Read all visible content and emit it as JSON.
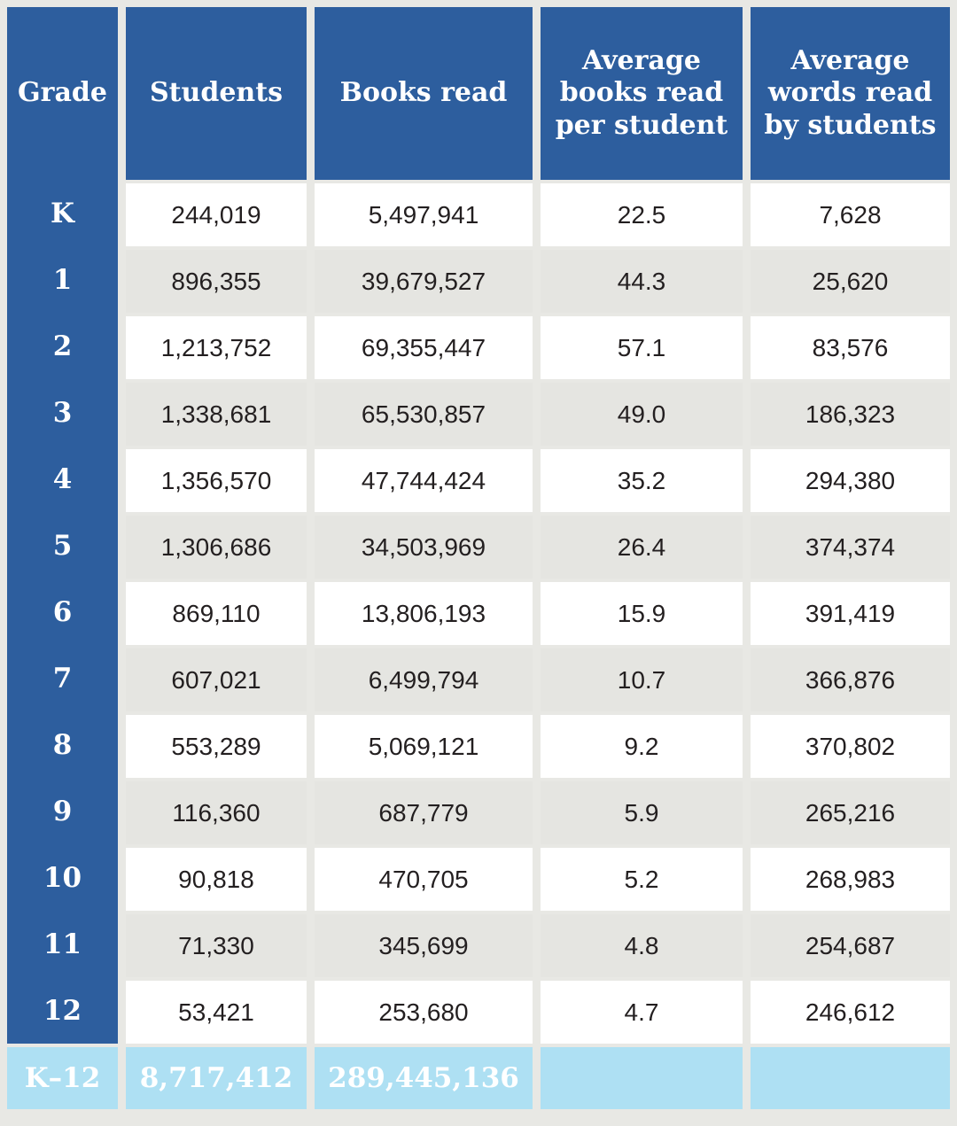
{
  "colors": {
    "header_blue": "#2d5e9e",
    "total_light_blue": "#aee0f3",
    "row_alt_gray": "#e5e5e1",
    "row_white": "#ffffff",
    "page_background": "#e8e8e4",
    "data_text": "#231f20",
    "header_text": "#ffffff"
  },
  "chart_data": {
    "type": "table",
    "columns": [
      "Grade",
      "Students",
      "Books read",
      "Average books read per student",
      "Average words read by students"
    ],
    "rows": [
      [
        "K",
        "244,019",
        "5,497,941",
        "22.5",
        "7,628"
      ],
      [
        "1",
        "896,355",
        "39,679,527",
        "44.3",
        "25,620"
      ],
      [
        "2",
        "1,213,752",
        "69,355,447",
        "57.1",
        "83,576"
      ],
      [
        "3",
        "1,338,681",
        "65,530,857",
        "49.0",
        "186,323"
      ],
      [
        "4",
        "1,356,570",
        "47,744,424",
        "35.2",
        "294,380"
      ],
      [
        "5",
        "1,306,686",
        "34,503,969",
        "26.4",
        "374,374"
      ],
      [
        "6",
        "869,110",
        "13,806,193",
        "15.9",
        "391,419"
      ],
      [
        "7",
        "607,021",
        "6,499,794",
        "10.7",
        "366,876"
      ],
      [
        "8",
        "553,289",
        "5,069,121",
        "9.2",
        "370,802"
      ],
      [
        "9",
        "116,360",
        "687,779",
        "5.9",
        "265,216"
      ],
      [
        "10",
        "90,818",
        "470,705",
        "5.2",
        "268,983"
      ],
      [
        "11",
        "71,330",
        "345,699",
        "4.8",
        "254,687"
      ],
      [
        "12",
        "53,421",
        "253,680",
        "4.7",
        "246,612"
      ]
    ],
    "total_row": [
      "K–12",
      "8,717,412",
      "289,445,136",
      "",
      ""
    ]
  }
}
